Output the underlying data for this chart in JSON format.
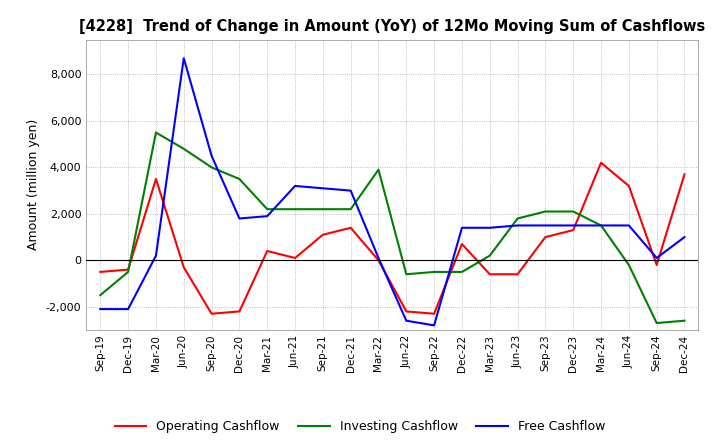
{
  "title": "[4228]  Trend of Change in Amount (YoY) of 12Mo Moving Sum of Cashflows",
  "ylabel": "Amount (million yen)",
  "ylim": [
    -3000,
    9500
  ],
  "yticks": [
    -2000,
    0,
    2000,
    4000,
    6000,
    8000
  ],
  "x_labels": [
    "Sep-19",
    "Dec-19",
    "Mar-20",
    "Jun-20",
    "Sep-20",
    "Dec-20",
    "Mar-21",
    "Jun-21",
    "Sep-21",
    "Dec-21",
    "Mar-22",
    "Jun-22",
    "Sep-22",
    "Dec-22",
    "Mar-23",
    "Jun-23",
    "Sep-23",
    "Dec-23",
    "Mar-24",
    "Jun-24",
    "Sep-24",
    "Dec-24"
  ],
  "operating": [
    -500,
    -400,
    3500,
    -300,
    -2300,
    -2200,
    400,
    100,
    1100,
    1400,
    0,
    -2200,
    -2300,
    700,
    -600,
    -600,
    1000,
    1300,
    4200,
    3200,
    -200,
    3700
  ],
  "investing": [
    -1500,
    -500,
    5500,
    4800,
    4000,
    3500,
    2200,
    2200,
    2200,
    2200,
    3900,
    -600,
    -500,
    -500,
    200,
    1800,
    2100,
    2100,
    1500,
    -200,
    -2700,
    -2600
  ],
  "free": [
    -2100,
    -2100,
    200,
    8700,
    4500,
    1800,
    1900,
    3200,
    3100,
    3000,
    100,
    -2600,
    -2800,
    1400,
    1400,
    1500,
    1500,
    1500,
    1500,
    1500,
    100,
    1000
  ],
  "operating_color": "#ff0000",
  "investing_color": "#008000",
  "free_color": "#0000ff",
  "grid_color": "#aaaaaa",
  "background_color": "#ffffff"
}
